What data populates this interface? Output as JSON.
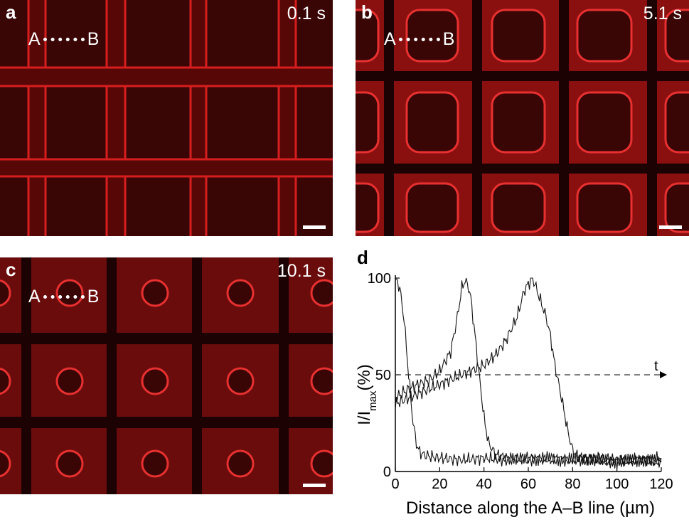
{
  "panels": {
    "a": {
      "label": "a",
      "time": "0.1 s",
      "marker_a": "A",
      "marker_b": "B"
    },
    "b": {
      "label": "b",
      "time": "5.1 s",
      "marker_a": "A",
      "marker_b": "B"
    },
    "c": {
      "label": "c",
      "time": "10.1 s",
      "marker_a": "A",
      "marker_b": "B"
    },
    "d": {
      "label": "d"
    }
  },
  "colors": {
    "fluorescence": "#e02020",
    "background_dark": "#3a0505",
    "channel_dark": "#1c0202"
  },
  "chart_data": {
    "type": "line",
    "title": "",
    "xlabel": "Distance along the A–B line (µm)",
    "ylabel": "I/I",
    "ylabel_sub": "max",
    "ylabel_unit": "(%)",
    "xlim": [
      0,
      120
    ],
    "ylim": [
      0,
      100
    ],
    "xticks": [
      0,
      20,
      40,
      60,
      80,
      100,
      120
    ],
    "yticks": [
      0,
      50,
      100
    ],
    "arrow_label": "t",
    "reference_line": {
      "y": 50,
      "style": "dashed"
    },
    "series": [
      {
        "x": [
          0,
          2,
          4,
          6,
          8,
          10,
          12,
          15,
          20,
          30,
          40,
          50,
          60,
          70,
          80,
          90,
          100,
          110,
          120
        ],
        "values": [
          100,
          95,
          78,
          50,
          25,
          12,
          9,
          8,
          7,
          6,
          7,
          6,
          7,
          6,
          6,
          7,
          6,
          6,
          7
        ]
      },
      {
        "x": [
          0,
          5,
          10,
          15,
          20,
          25,
          28,
          30,
          32,
          34,
          36,
          38,
          40,
          42,
          45,
          50,
          60,
          70,
          80,
          90,
          100,
          110,
          120
        ],
        "values": [
          38,
          42,
          45,
          47,
          52,
          62,
          80,
          95,
          100,
          90,
          70,
          48,
          28,
          15,
          9,
          7,
          6,
          7,
          6,
          6,
          5,
          6,
          5
        ]
      },
      {
        "x": [
          0,
          10,
          20,
          30,
          40,
          45,
          50,
          55,
          58,
          60,
          62,
          65,
          68,
          70,
          72,
          75,
          78,
          80,
          82,
          85,
          90,
          100,
          110,
          120
        ],
        "values": [
          35,
          40,
          45,
          50,
          55,
          60,
          68,
          80,
          93,
          97,
          100,
          90,
          80,
          70,
          55,
          38,
          20,
          11,
          8,
          7,
          6,
          5,
          6,
          5
        ]
      }
    ]
  }
}
